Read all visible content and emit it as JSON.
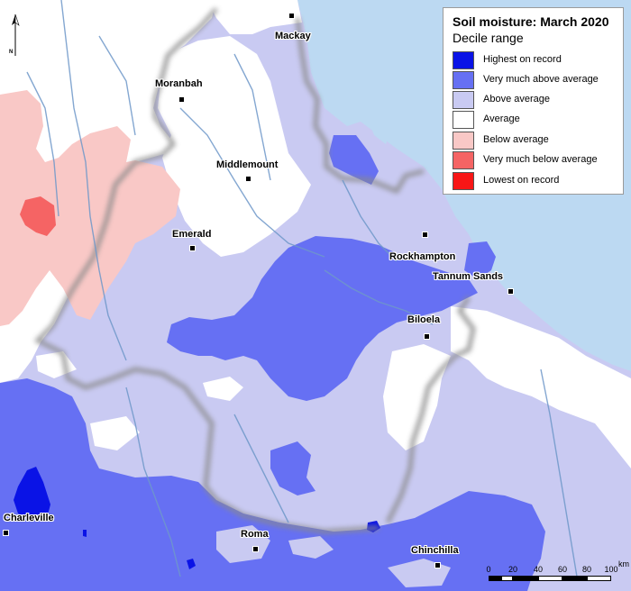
{
  "legend": {
    "title": "Soil moisture: March 2020",
    "subtitle": "Decile range",
    "items": [
      {
        "label": "Highest on record",
        "color": "#0a13e6"
      },
      {
        "label": "Very much above average",
        "color": "#6670f3"
      },
      {
        "label": "Above average",
        "color": "#c9caf2"
      },
      {
        "label": "Average",
        "color": "#ffffff"
      },
      {
        "label": "Below average",
        "color": "#f9c8c6"
      },
      {
        "label": "Very much below average",
        "color": "#f56464"
      },
      {
        "label": "Lowest on record",
        "color": "#f81616"
      }
    ]
  },
  "towns": [
    {
      "name": "Mackay"
    },
    {
      "name": "Moranbah"
    },
    {
      "name": "Middlemount"
    },
    {
      "name": "Emerald"
    },
    {
      "name": "Rockhampton"
    },
    {
      "name": "Tannum Sands"
    },
    {
      "name": "Biloela"
    },
    {
      "name": "Charleville"
    },
    {
      "name": "Roma"
    },
    {
      "name": "Chinchilla"
    }
  ],
  "scale": {
    "ticks": [
      "0",
      "20",
      "40",
      "60",
      "80",
      "100"
    ],
    "unit": "km"
  },
  "north_label": "N",
  "colors": {
    "sea": "#bcd9f2",
    "outside_region": "#ffffff",
    "rivers": "#6f98c9",
    "boundary_shadow": "#8a8a8a"
  }
}
